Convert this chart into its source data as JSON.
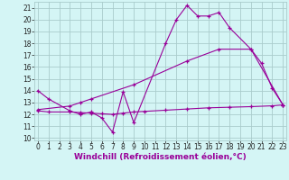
{
  "line1_x": [
    0,
    1,
    3,
    4,
    5,
    6,
    7,
    8,
    9,
    12,
    13,
    14,
    15,
    16,
    17,
    18,
    20,
    21,
    22,
    23
  ],
  "line1_y": [
    14.0,
    13.3,
    12.3,
    12.0,
    12.2,
    11.7,
    10.5,
    13.9,
    11.3,
    18.0,
    20.0,
    21.2,
    20.3,
    20.3,
    20.6,
    19.3,
    17.5,
    16.3,
    14.2,
    12.8
  ],
  "line2_x": [
    0,
    1,
    3,
    4,
    5,
    6,
    7,
    8,
    9,
    10,
    12,
    14,
    16,
    18,
    20,
    22,
    23
  ],
  "line2_y": [
    12.3,
    12.2,
    12.2,
    12.15,
    12.1,
    12.05,
    12.0,
    12.1,
    12.2,
    12.25,
    12.35,
    12.45,
    12.55,
    12.6,
    12.65,
    12.72,
    12.8
  ],
  "line3_x": [
    0,
    3,
    4,
    5,
    9,
    14,
    17,
    20,
    23
  ],
  "line3_y": [
    12.4,
    12.7,
    13.0,
    13.3,
    14.5,
    16.5,
    17.5,
    17.5,
    12.8
  ],
  "line_color": "#990099",
  "bg_color": "#d4f5f5",
  "grid_color": "#aacccc",
  "xlabel": "Windchill (Refroidissement éolien,°C)",
  "ylabel_ticks": [
    10,
    11,
    12,
    13,
    14,
    15,
    16,
    17,
    18,
    19,
    20,
    21
  ],
  "xlabel_ticks": [
    0,
    1,
    2,
    3,
    4,
    5,
    6,
    7,
    8,
    9,
    10,
    11,
    12,
    13,
    14,
    15,
    16,
    17,
    18,
    19,
    20,
    21,
    22,
    23
  ],
  "xlim": [
    -0.3,
    23.3
  ],
  "ylim": [
    9.8,
    21.5
  ],
  "tick_fontsize": 5.5,
  "xlabel_fontsize": 6.5
}
